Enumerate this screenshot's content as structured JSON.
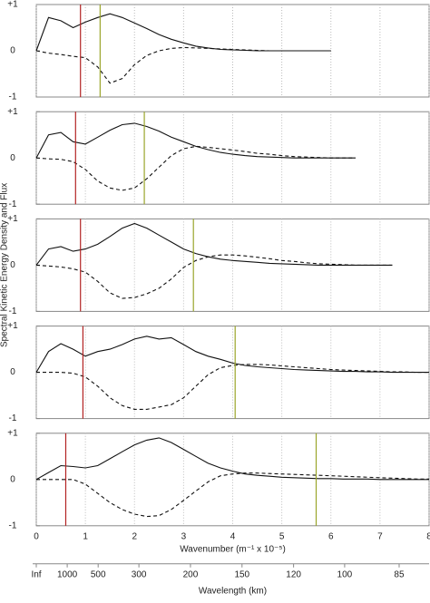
{
  "chart_data": [
    {
      "type": "line",
      "xlim": [
        0,
        8
      ],
      "ylim": [
        -1,
        1
      ],
      "yticks": [
        {
          "value": -1,
          "label": "-1"
        },
        0,
        {
          "value": 1,
          "label": "+1"
        }
      ],
      "xticks": [
        0,
        1,
        2,
        3,
        4,
        5,
        6,
        7,
        8
      ],
      "grid": true,
      "x": [
        0,
        0.25,
        0.5,
        0.75,
        1,
        1.25,
        1.5,
        1.75,
        2,
        2.25,
        2.5,
        2.75,
        3,
        3.25,
        3.5,
        3.75,
        4,
        4.25,
        4.5,
        4.75,
        5,
        5.25,
        5.5,
        5.75,
        6,
        6.25,
        6.5,
        6.75,
        7,
        7.25,
        7.5,
        7.75,
        8
      ],
      "series": [
        {
          "color": "#111111",
          "dash": false,
          "values": [
            0,
            0.72,
            0.65,
            0.5,
            0.62,
            0.72,
            0.8,
            0.72,
            0.6,
            0.48,
            0.35,
            0.25,
            0.17,
            0.1,
            0.06,
            0.03,
            0.02,
            0.01,
            0,
            0,
            0,
            0,
            0,
            0,
            0,
            null,
            null,
            null,
            null,
            null,
            null,
            null,
            null
          ]
        },
        {
          "color": "#111111",
          "dash": true,
          "values": [
            0,
            -0.05,
            -0.08,
            -0.12,
            -0.15,
            -0.35,
            -0.7,
            -0.6,
            -0.3,
            -0.1,
            0,
            0.05,
            0.07,
            0.06,
            0.05,
            0.04,
            0.03,
            0.02,
            0.01,
            0,
            0,
            0,
            0,
            0,
            0,
            null,
            null,
            null,
            null,
            null,
            null,
            null,
            null
          ]
        }
      ],
      "markers": [
        {
          "color": "#b22222",
          "x": 0.9
        },
        {
          "color": "#9aa52a",
          "x": 1.3
        }
      ]
    },
    {
      "type": "line",
      "xlim": [
        0,
        8
      ],
      "ylim": [
        -1,
        1
      ],
      "yticks": [
        {
          "value": -1,
          "label": "-1"
        },
        0,
        {
          "value": 1,
          "label": "+1"
        }
      ],
      "xticks": [
        0,
        1,
        2,
        3,
        4,
        5,
        6,
        7,
        8
      ],
      "grid": true,
      "x": [
        0,
        0.25,
        0.5,
        0.75,
        1,
        1.25,
        1.5,
        1.75,
        2,
        2.25,
        2.5,
        2.75,
        3,
        3.25,
        3.5,
        3.75,
        4,
        4.25,
        4.5,
        4.75,
        5,
        5.25,
        5.5,
        5.75,
        6,
        6.25,
        6.5,
        6.75,
        7,
        7.25,
        7.5,
        7.75,
        8
      ],
      "series": [
        {
          "color": "#111111",
          "dash": false,
          "values": [
            0,
            0.5,
            0.55,
            0.35,
            0.3,
            0.45,
            0.6,
            0.72,
            0.75,
            0.68,
            0.58,
            0.45,
            0.35,
            0.25,
            0.18,
            0.12,
            0.08,
            0.05,
            0.03,
            0.02,
            0.01,
            0,
            0,
            0,
            0,
            0,
            0,
            null,
            null,
            null,
            null,
            null,
            null
          ]
        },
        {
          "color": "#111111",
          "dash": true,
          "values": [
            0,
            -0.02,
            -0.03,
            -0.08,
            -0.25,
            -0.5,
            -0.65,
            -0.7,
            -0.65,
            -0.45,
            -0.2,
            0.05,
            0.2,
            0.25,
            0.23,
            0.2,
            0.17,
            0.14,
            0.1,
            0.08,
            0.05,
            0.03,
            0.02,
            0.01,
            0,
            0,
            0,
            null,
            null,
            null,
            null,
            null,
            null
          ]
        }
      ],
      "markers": [
        {
          "color": "#b22222",
          "x": 0.8
        },
        {
          "color": "#9aa52a",
          "x": 2.2
        }
      ]
    },
    {
      "type": "line",
      "xlim": [
        0,
        8
      ],
      "ylim": [
        -1,
        1
      ],
      "yticks": [
        {
          "value": -1,
          "label": "-1"
        },
        0,
        {
          "value": 1,
          "label": "+1"
        }
      ],
      "xticks": [
        0,
        1,
        2,
        3,
        4,
        5,
        6,
        7,
        8
      ],
      "grid": true,
      "x": [
        0,
        0.25,
        0.5,
        0.75,
        1,
        1.25,
        1.5,
        1.75,
        2,
        2.25,
        2.5,
        2.75,
        3,
        3.25,
        3.5,
        3.75,
        4,
        4.25,
        4.5,
        4.75,
        5,
        5.25,
        5.5,
        5.75,
        6,
        6.25,
        6.5,
        6.75,
        7,
        7.25,
        7.5,
        7.75,
        8
      ],
      "series": [
        {
          "color": "#111111",
          "dash": false,
          "values": [
            0,
            0.35,
            0.4,
            0.3,
            0.35,
            0.45,
            0.62,
            0.8,
            0.9,
            0.8,
            0.65,
            0.5,
            0.35,
            0.25,
            0.18,
            0.13,
            0.1,
            0.08,
            0.06,
            0.04,
            0.03,
            0.02,
            0.01,
            0,
            0,
            0,
            0,
            0,
            0,
            0,
            null,
            null,
            null
          ]
        },
        {
          "color": "#111111",
          "dash": true,
          "values": [
            0,
            -0.02,
            -0.04,
            -0.08,
            -0.15,
            -0.35,
            -0.6,
            -0.72,
            -0.7,
            -0.62,
            -0.5,
            -0.3,
            -0.05,
            0.1,
            0.18,
            0.22,
            0.22,
            0.2,
            0.17,
            0.14,
            0.1,
            0.08,
            0.05,
            0.03,
            0.02,
            0.01,
            0,
            0,
            0,
            0,
            null,
            null,
            null
          ]
        }
      ],
      "markers": [
        {
          "color": "#b22222",
          "x": 0.9
        },
        {
          "color": "#9aa52a",
          "x": 3.2
        }
      ]
    },
    {
      "type": "line",
      "xlim": [
        0,
        8
      ],
      "ylim": [
        -1,
        1
      ],
      "yticks": [
        {
          "value": -1,
          "label": "-1"
        },
        0,
        {
          "value": 1,
          "label": "+1"
        }
      ],
      "xticks": [
        0,
        1,
        2,
        3,
        4,
        5,
        6,
        7,
        8
      ],
      "grid": true,
      "x": [
        0,
        0.25,
        0.5,
        0.75,
        1,
        1.25,
        1.5,
        1.75,
        2,
        2.25,
        2.5,
        2.75,
        3,
        3.25,
        3.5,
        3.75,
        4,
        4.25,
        4.5,
        4.75,
        5,
        5.25,
        5.5,
        5.75,
        6,
        6.25,
        6.5,
        6.75,
        7,
        7.25,
        7.5,
        7.75,
        8
      ],
      "series": [
        {
          "color": "#111111",
          "dash": false,
          "values": [
            0,
            0.45,
            0.62,
            0.5,
            0.35,
            0.45,
            0.5,
            0.6,
            0.72,
            0.78,
            0.72,
            0.75,
            0.6,
            0.45,
            0.35,
            0.28,
            0.2,
            0.15,
            0.12,
            0.1,
            0.08,
            0.06,
            0.05,
            0.04,
            0.03,
            0.02,
            0.02,
            0.01,
            0.01,
            0,
            0,
            0,
            0
          ]
        },
        {
          "color": "#111111",
          "dash": true,
          "values": [
            0,
            0,
            0,
            -0.02,
            -0.1,
            -0.3,
            -0.55,
            -0.72,
            -0.8,
            -0.8,
            -0.75,
            -0.7,
            -0.55,
            -0.3,
            -0.05,
            0.1,
            0.15,
            0.17,
            0.17,
            0.16,
            0.14,
            0.12,
            0.1,
            0.08,
            0.06,
            0.05,
            0.04,
            0.03,
            0.02,
            0.01,
            0.01,
            0,
            0
          ]
        }
      ],
      "markers": [
        {
          "color": "#b22222",
          "x": 0.95
        },
        {
          "color": "#9aa52a",
          "x": 4.05
        }
      ]
    },
    {
      "type": "line",
      "xlim": [
        0,
        8
      ],
      "ylim": [
        -1,
        1
      ],
      "yticks": [
        {
          "value": -1,
          "label": "-1"
        },
        0,
        {
          "value": 1,
          "label": "+1"
        }
      ],
      "xticks": [
        0,
        1,
        2,
        3,
        4,
        5,
        6,
        7,
        8
      ],
      "grid": true,
      "x": [
        0,
        0.25,
        0.5,
        0.75,
        1,
        1.25,
        1.5,
        1.75,
        2,
        2.25,
        2.5,
        2.75,
        3,
        3.25,
        3.5,
        3.75,
        4,
        4.25,
        4.5,
        4.75,
        5,
        5.25,
        5.5,
        5.75,
        6,
        6.25,
        6.5,
        6.75,
        7,
        7.25,
        7.5,
        7.75,
        8
      ],
      "series": [
        {
          "color": "#111111",
          "dash": false,
          "values": [
            0,
            0.15,
            0.3,
            0.28,
            0.25,
            0.3,
            0.45,
            0.6,
            0.75,
            0.85,
            0.9,
            0.8,
            0.65,
            0.5,
            0.35,
            0.25,
            0.18,
            0.12,
            0.09,
            0.07,
            0.05,
            0.04,
            0.03,
            0.02,
            0.02,
            0.01,
            0.01,
            0.01,
            0,
            0,
            0,
            0,
            0
          ]
        },
        {
          "color": "#111111",
          "dash": true,
          "values": [
            0,
            0,
            0,
            0,
            -0.1,
            -0.3,
            -0.5,
            -0.65,
            -0.75,
            -0.8,
            -0.78,
            -0.65,
            -0.45,
            -0.25,
            -0.05,
            0.08,
            0.12,
            0.14,
            0.14,
            0.13,
            0.12,
            0.11,
            0.1,
            0.09,
            0.08,
            0.07,
            0.06,
            0.05,
            0.04,
            0.03,
            0.02,
            0.01,
            0.01
          ]
        }
      ],
      "markers": [
        {
          "color": "#b22222",
          "x": 0.6
        },
        {
          "color": "#9aa52a",
          "x": 5.7
        }
      ],
      "xlabel": "Wavenumber (m⁻¹ x 10⁻⁵)",
      "ylabel": "Spectral Kinetic Energy Density and Flux",
      "x2label": "Wavelength (km)",
      "x2ticks": [
        {
          "value": 0,
          "label": "Inf"
        },
        {
          "value": 0.63,
          "label": "1000"
        },
        {
          "value": 1.26,
          "label": "500"
        },
        {
          "value": 2.09,
          "label": "300"
        },
        {
          "value": 3.14,
          "label": "200"
        },
        {
          "value": 4.19,
          "label": "150"
        },
        {
          "value": 5.24,
          "label": "120"
        },
        {
          "value": 6.28,
          "label": "100"
        },
        {
          "value": 7.39,
          "label": "85"
        }
      ]
    }
  ]
}
